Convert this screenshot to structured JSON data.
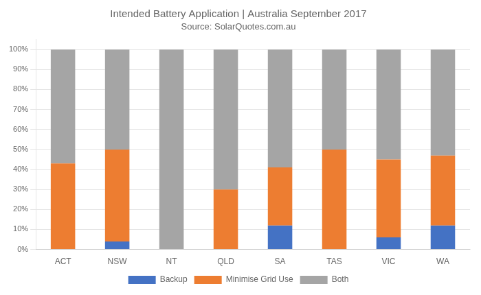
{
  "chart_data": {
    "type": "bar",
    "title": "Intended Battery Application | Australia September 2017",
    "subtitle": "Source: SolarQuotes.com.au",
    "categories": [
      "ACT",
      "NSW",
      "NT",
      "QLD",
      "SA",
      "TAS",
      "VIC",
      "WA"
    ],
    "series": [
      {
        "name": "Backup",
        "color": "#4472c4",
        "values": [
          0,
          4,
          0,
          0,
          12,
          0,
          6,
          12
        ]
      },
      {
        "name": "Minimise Grid Use",
        "color": "#ed7d31",
        "values": [
          43,
          46,
          0,
          30,
          29,
          50,
          39,
          35
        ]
      },
      {
        "name": "Both",
        "color": "#a5a5a5",
        "values": [
          57,
          50,
          100,
          70,
          59,
          50,
          55,
          53
        ]
      }
    ],
    "stacked": true,
    "ylim": [
      0,
      105
    ],
    "yticks": [
      {
        "value": 0,
        "label": "0%"
      },
      {
        "value": 10,
        "label": "10%"
      },
      {
        "value": 20,
        "label": "20%"
      },
      {
        "value": 30,
        "label": "30%"
      },
      {
        "value": 40,
        "label": "40%"
      },
      {
        "value": 50,
        "label": "50%"
      },
      {
        "value": 60,
        "label": "60%"
      },
      {
        "value": 70,
        "label": "70%"
      },
      {
        "value": 80,
        "label": "80%"
      },
      {
        "value": 90,
        "label": "90%"
      },
      {
        "value": 100,
        "label": "100%"
      }
    ],
    "grid": true,
    "legend": "bottom"
  }
}
